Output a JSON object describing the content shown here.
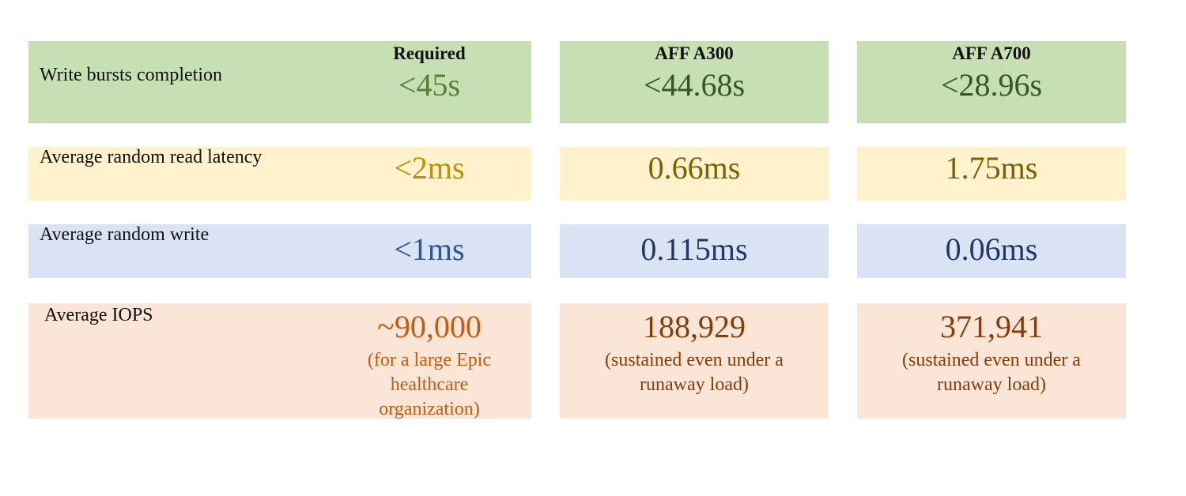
{
  "headers": [
    "Required",
    "AFF A300",
    "AFF A700"
  ],
  "rows": [
    {
      "label": "Write bursts completion",
      "cells": [
        {
          "value": "<45s"
        },
        {
          "value": "<44.68s"
        },
        {
          "value": "<28.96s"
        }
      ]
    },
    {
      "label": "Average random read latency",
      "cells": [
        {
          "value": "<2ms"
        },
        {
          "value": "0.66ms"
        },
        {
          "value": "1.75ms"
        }
      ]
    },
    {
      "label": "Average random write",
      "cells": [
        {
          "value": "<1ms"
        },
        {
          "value": "0.115ms"
        },
        {
          "value": "0.06ms"
        }
      ]
    },
    {
      "label": "Average IOPS",
      "cells": [
        {
          "value": "~90,000",
          "note": "(for a large Epic healthcare organization)"
        },
        {
          "value": "188,929",
          "note": "(sustained even under a runaway load)"
        },
        {
          "value": "371,941",
          "note": "(sustained even under a runaway load)"
        }
      ]
    }
  ]
}
